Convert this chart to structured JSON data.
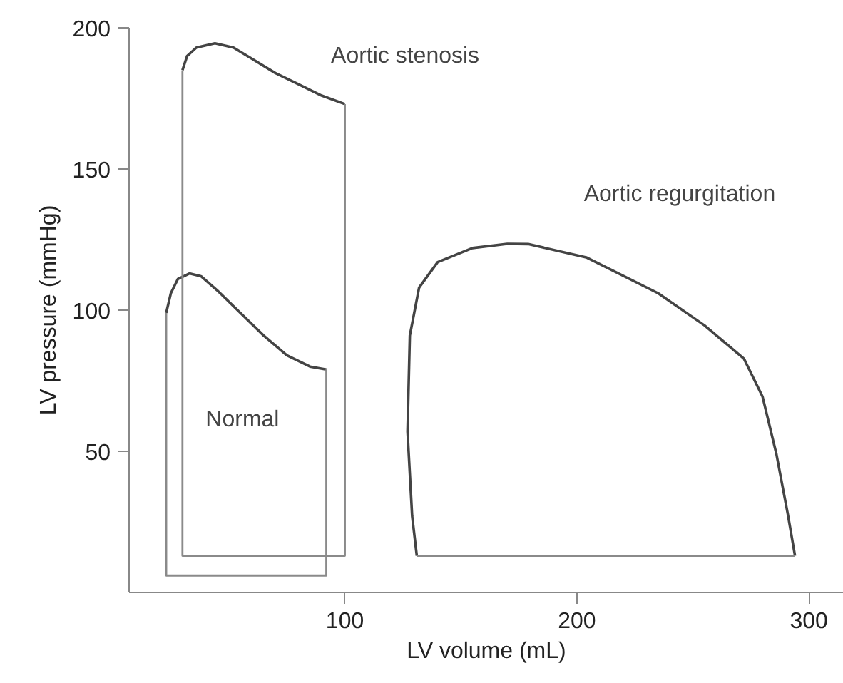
{
  "chart_data": {
    "type": "line",
    "xlabel": "LV volume (mL)",
    "ylabel": "LV pressure (mmHg)",
    "xlim": [
      7,
      315
    ],
    "ylim": [
      0,
      200
    ],
    "xticks": [
      100,
      200,
      300
    ],
    "yticks": [
      50,
      100,
      150,
      200
    ],
    "grid": false,
    "marker": "none",
    "line_style": "solid",
    "series": [
      {
        "name": "Normal",
        "color": "#444444",
        "x": [
          23,
          25,
          28,
          33,
          38,
          45,
          55,
          65,
          75,
          85,
          92
        ],
        "values": [
          99,
          106,
          111,
          113,
          112,
          107,
          99,
          91,
          84,
          80,
          79
        ]
      },
      {
        "color": "#8a8a8a",
        "x": [
          23,
          23,
          92,
          92
        ],
        "values": [
          99,
          6,
          6,
          79
        ]
      },
      {
        "name": "Aortic stenosis",
        "color": "#444444",
        "x": [
          30,
          32,
          36,
          44,
          52,
          60,
          70,
          80,
          90,
          100
        ],
        "values": [
          185,
          190,
          193,
          194.5,
          193,
          189,
          184,
          180,
          176,
          173
        ]
      },
      {
        "color": "#8a8a8a",
        "x": [
          30,
          30,
          100,
          100
        ],
        "values": [
          185,
          13,
          13,
          173
        ]
      },
      {
        "name": "Aortic regurgitation",
        "color": "#444444",
        "x": [
          131,
          129,
          127,
          128,
          132,
          140,
          155,
          170,
          179,
          204,
          235,
          255,
          272,
          280,
          286,
          291,
          294
        ],
        "values": [
          13,
          27,
          57,
          91,
          108,
          117,
          122,
          123.5,
          123.4,
          118.7,
          106,
          94.6,
          82.8,
          69.4,
          49,
          27.3,
          13
        ]
      },
      {
        "color": "#8a8a8a",
        "x": [
          131,
          294
        ],
        "values": [
          13,
          13
        ]
      }
    ]
  }
}
